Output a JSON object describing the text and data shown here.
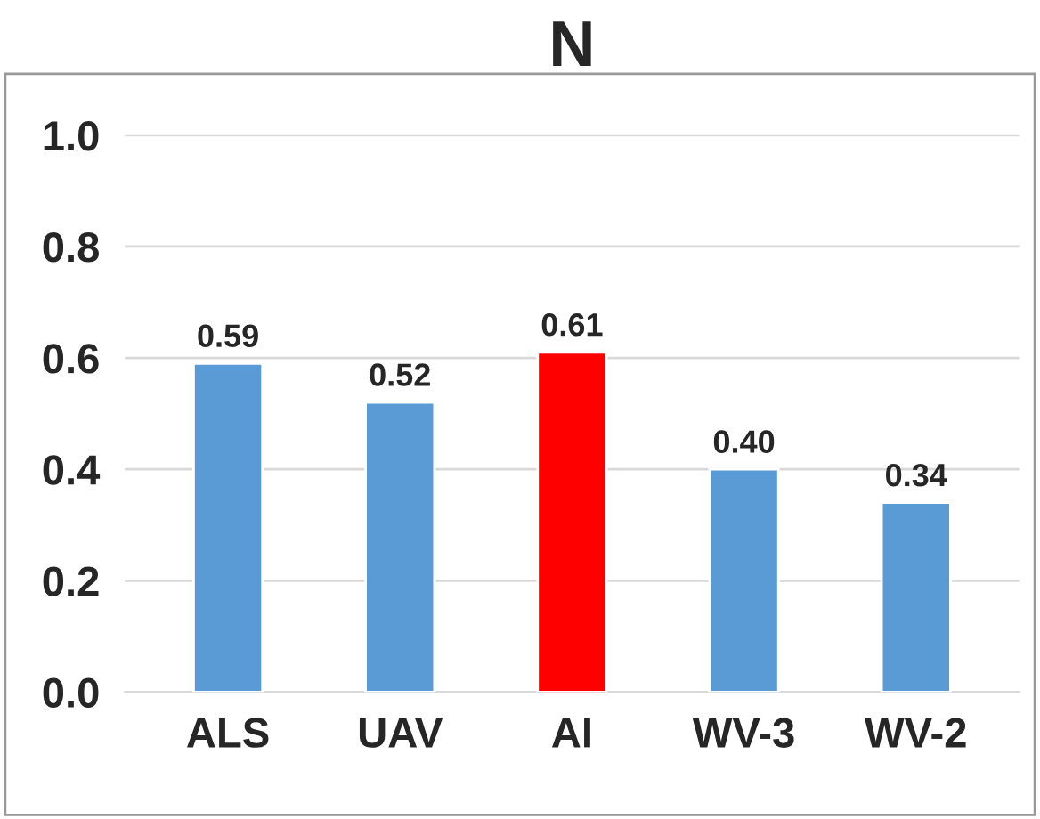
{
  "chart_data": {
    "type": "bar",
    "title": "N",
    "categories": [
      "ALS",
      "UAV",
      "AI",
      "WV-3",
      "WV-2"
    ],
    "values": [
      0.59,
      0.52,
      0.61,
      0.4,
      0.34
    ],
    "colors": [
      "#5b9bd5",
      "#5b9bd5",
      "#ff0000",
      "#5b9bd5",
      "#5b9bd5"
    ],
    "value_labels": [
      "0.59",
      "0.52",
      "0.61",
      "0.40",
      "0.34"
    ],
    "ylim": [
      0,
      1.0
    ],
    "yticks": [
      {
        "value": 0,
        "label": "0.0"
      },
      {
        "value": 0.2,
        "label": "0.2"
      },
      {
        "value": 0.4,
        "label": "0.4"
      },
      {
        "value": 0.6,
        "label": "0.6"
      },
      {
        "value": 0.8,
        "label": "0.8"
      },
      {
        "value": 1.0,
        "label": "1.0"
      }
    ],
    "grid": "y",
    "legend": false
  }
}
